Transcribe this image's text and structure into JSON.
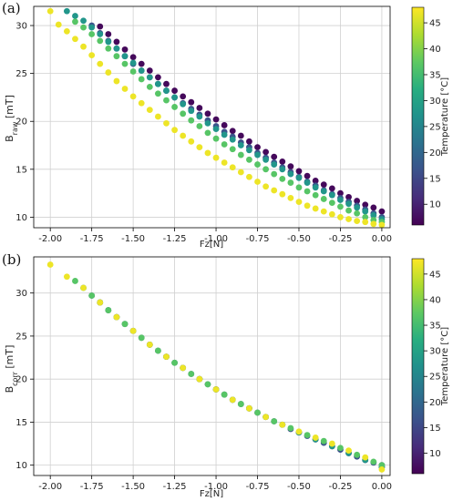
{
  "chart_data": [
    {
      "type": "scatter",
      "panel_label": "(a)",
      "xlabel": "Fz[N]",
      "ylabel_main": "B",
      "ylabel_sub": "raw",
      "ylabel_unit": " [mT]",
      "xlim": [
        -2.1,
        0.05
      ],
      "ylim": [
        8.9,
        32.0
      ],
      "xticks": [
        -2.0,
        -1.75,
        -1.5,
        -1.25,
        -1.0,
        -0.75,
        -0.5,
        -0.25,
        0.0
      ],
      "xtick_labels": [
        "-2.00",
        "-1.75",
        "-1.50",
        "-1.25",
        "-1.00",
        "-0.75",
        "-0.50",
        "-0.25",
        "0.00"
      ],
      "yticks": [
        10,
        15,
        20,
        25,
        30
      ],
      "ytick_labels": [
        "10",
        "15",
        "20",
        "25",
        "30"
      ],
      "grid": true,
      "colorbar": {
        "label": "Temperature [°C]",
        "range": [
          6,
          48
        ],
        "ticks": [
          10,
          15,
          20,
          25,
          30,
          35,
          40,
          45
        ],
        "tick_labels": [
          "10",
          "15",
          "20",
          "25",
          "30",
          "35",
          "40",
          "45"
        ],
        "colormap": "viridis"
      },
      "series": [
        {
          "temperature": 7,
          "x": [
            -1.7,
            -1.65,
            -1.6,
            -1.55,
            -1.5,
            -1.45,
            -1.4,
            -1.35,
            -1.3,
            -1.25,
            -1.2,
            -1.15,
            -1.1,
            -1.05,
            -1.0,
            -0.95,
            -0.9,
            -0.85,
            -0.8,
            -0.75,
            -0.7,
            -0.65,
            -0.6,
            -0.55,
            -0.5,
            -0.45,
            -0.4,
            -0.35,
            -0.3,
            -0.25,
            -0.2,
            -0.15,
            -0.1,
            -0.05,
            0.0
          ],
          "y": [
            29.9,
            29.1,
            28.3,
            27.5,
            26.7,
            26.0,
            25.3,
            24.6,
            23.9,
            23.2,
            22.6,
            22.0,
            21.4,
            20.8,
            20.2,
            19.6,
            19.0,
            18.5,
            17.9,
            17.3,
            16.8,
            16.3,
            15.8,
            15.3,
            14.8,
            14.3,
            13.8,
            13.4,
            13.0,
            12.5,
            12.1,
            11.7,
            11.3,
            11.0,
            10.6
          ]
        },
        {
          "temperature": 17,
          "x": [
            -1.75,
            -1.7,
            -1.65,
            -1.6,
            -1.55,
            -1.5,
            -1.45,
            -1.4,
            -1.35,
            -1.3,
            -1.25,
            -1.2,
            -1.15,
            -1.1,
            -1.05,
            -1.0,
            -0.95,
            -0.9,
            -0.85,
            -0.8,
            -0.75,
            -0.7,
            -0.65,
            -0.6,
            -0.55,
            -0.5,
            -0.45,
            -0.4,
            -0.35,
            -0.3,
            -0.25,
            -0.2,
            -0.15,
            -0.1,
            -0.05,
            0.0
          ],
          "y": [
            30.0,
            29.2,
            28.4,
            27.6,
            26.8,
            26.0,
            25.3,
            24.6,
            23.9,
            23.2,
            22.5,
            21.9,
            21.3,
            20.7,
            20.1,
            19.5,
            18.9,
            18.4,
            17.8,
            17.3,
            16.7,
            16.2,
            15.7,
            15.2,
            14.7,
            14.2,
            13.7,
            13.3,
            12.8,
            12.4,
            12.0,
            11.6,
            11.2,
            10.8,
            10.4,
            10.0
          ]
        },
        {
          "temperature": 28,
          "x": [
            -1.9,
            -1.85,
            -1.8,
            -1.75,
            -1.7,
            -1.65,
            -1.6,
            -1.55,
            -1.5,
            -1.45,
            -1.4,
            -1.35,
            -1.3,
            -1.25,
            -1.2,
            -1.15,
            -1.1,
            -1.05,
            -1.0,
            -0.95,
            -0.9,
            -0.85,
            -0.8,
            -0.75,
            -0.7,
            -0.65,
            -0.6,
            -0.55,
            -0.5,
            -0.45,
            -0.4,
            -0.35,
            -0.3,
            -0.25,
            -0.2,
            -0.15,
            -0.1,
            -0.05,
            0.0
          ],
          "y": [
            31.5,
            31.0,
            30.5,
            29.8,
            29.1,
            28.3,
            27.6,
            26.8,
            26.1,
            25.3,
            24.6,
            23.9,
            23.2,
            22.5,
            21.8,
            21.1,
            20.5,
            19.8,
            19.2,
            18.6,
            18.1,
            17.5,
            17.0,
            16.5,
            16.0,
            15.5,
            15.0,
            14.5,
            14.1,
            13.6,
            13.1,
            12.7,
            12.3,
            11.8,
            11.4,
            11.0,
            10.6,
            10.2,
            9.8
          ]
        },
        {
          "temperature": 37,
          "x": [
            -1.85,
            -1.8,
            -1.75,
            -1.7,
            -1.65,
            -1.6,
            -1.55,
            -1.5,
            -1.45,
            -1.4,
            -1.35,
            -1.3,
            -1.25,
            -1.2,
            -1.15,
            -1.1,
            -1.05,
            -1.0,
            -0.95,
            -0.9,
            -0.85,
            -0.8,
            -0.75,
            -0.7,
            -0.65,
            -0.6,
            -0.55,
            -0.5,
            -0.45,
            -0.4,
            -0.35,
            -0.3,
            -0.25,
            -0.2,
            -0.15,
            -0.1,
            -0.05,
            0.0
          ],
          "y": [
            30.4,
            29.8,
            29.1,
            28.4,
            27.6,
            26.8,
            26.0,
            25.2,
            24.4,
            23.6,
            22.9,
            22.2,
            21.5,
            20.8,
            20.1,
            19.5,
            18.8,
            18.2,
            17.6,
            17.1,
            16.5,
            16.0,
            15.5,
            15.0,
            14.5,
            14.0,
            13.6,
            13.1,
            12.7,
            12.3,
            11.9,
            11.5,
            11.1,
            10.7,
            10.4,
            10.0,
            9.7,
            9.5
          ]
        },
        {
          "temperature": 47,
          "x": [
            -2.0,
            -1.95,
            -1.9,
            -1.85,
            -1.8,
            -1.75,
            -1.7,
            -1.65,
            -1.6,
            -1.55,
            -1.5,
            -1.45,
            -1.4,
            -1.35,
            -1.3,
            -1.25,
            -1.2,
            -1.15,
            -1.1,
            -1.05,
            -1.0,
            -0.95,
            -0.9,
            -0.85,
            -0.8,
            -0.75,
            -0.7,
            -0.65,
            -0.6,
            -0.55,
            -0.5,
            -0.45,
            -0.4,
            -0.35,
            -0.3,
            -0.25,
            -0.2,
            -0.15,
            -0.1,
            -0.05,
            0.0
          ],
          "y": [
            31.5,
            30.1,
            29.4,
            28.6,
            27.8,
            26.9,
            26.0,
            25.1,
            24.2,
            23.4,
            22.6,
            21.9,
            21.2,
            20.5,
            19.8,
            19.1,
            18.5,
            17.9,
            17.3,
            16.7,
            16.2,
            15.7,
            15.2,
            14.7,
            14.2,
            13.7,
            13.2,
            12.8,
            12.4,
            12.0,
            11.6,
            11.2,
            10.9,
            10.6,
            10.3,
            10.0,
            9.8,
            9.6,
            9.5,
            9.3,
            9.2
          ]
        }
      ]
    },
    {
      "type": "scatter",
      "panel_label": "(b)",
      "xlabel": "Fz[N]",
      "ylabel_main": "B",
      "ylabel_sub": "corr",
      "ylabel_unit": " [mT]",
      "xlim": [
        -2.1,
        0.05
      ],
      "ylim": [
        8.8,
        34.2
      ],
      "xticks": [
        -2.0,
        -1.75,
        -1.5,
        -1.25,
        -1.0,
        -0.75,
        -0.5,
        -0.25,
        0.0
      ],
      "xtick_labels": [
        "-2.00",
        "-1.75",
        "-1.50",
        "-1.25",
        "-1.00",
        "-0.75",
        "-0.50",
        "-0.25",
        "0.00"
      ],
      "yticks": [
        10,
        15,
        20,
        25,
        30
      ],
      "ytick_labels": [
        "10",
        "15",
        "20",
        "25",
        "30"
      ],
      "grid": true,
      "colorbar": {
        "label": "Temperature [°C]",
        "range": [
          6,
          48
        ],
        "ticks": [
          10,
          15,
          20,
          25,
          30,
          35,
          40,
          45
        ],
        "tick_labels": [
          "10",
          "15",
          "20",
          "25",
          "30",
          "35",
          "40",
          "45"
        ],
        "colormap": "viridis"
      },
      "series": [
        {
          "temperature": 7,
          "x": [
            -1.7,
            -1.6,
            -1.5,
            -1.4,
            -1.3,
            -1.2,
            -1.1,
            -1.0,
            -0.9,
            -0.8,
            -0.7,
            -0.6,
            -0.5,
            -0.4,
            -0.3,
            -0.2,
            -0.1,
            0.0
          ],
          "y": [
            28.9,
            27.2,
            25.6,
            24.0,
            22.6,
            21.3,
            20.0,
            18.8,
            17.6,
            16.6,
            15.6,
            14.7,
            13.8,
            13.0,
            12.2,
            11.4,
            10.6,
            9.8
          ]
        },
        {
          "temperature": 17,
          "x": [
            -1.75,
            -1.65,
            -1.55,
            -1.45,
            -1.35,
            -1.25,
            -1.15,
            -1.05,
            -0.95,
            -0.85,
            -0.75,
            -0.65,
            -0.55,
            -0.45,
            -0.35,
            -0.25,
            -0.15,
            -0.05,
            0.0
          ],
          "y": [
            29.7,
            28.0,
            26.4,
            24.8,
            23.3,
            21.9,
            20.6,
            19.4,
            18.2,
            17.1,
            16.1,
            15.1,
            14.2,
            13.4,
            12.6,
            11.8,
            11.0,
            10.3,
            10.0
          ]
        },
        {
          "temperature": 28,
          "x": [
            -1.8,
            -1.7,
            -1.6,
            -1.5,
            -1.4,
            -1.3,
            -1.2,
            -1.1,
            -1.0,
            -0.9,
            -0.8,
            -0.7,
            -0.6,
            -0.5,
            -0.4,
            -0.3,
            -0.2,
            -0.1,
            0.0
          ],
          "y": [
            30.6,
            28.9,
            27.2,
            25.6,
            24.0,
            22.6,
            21.3,
            20.0,
            18.8,
            17.6,
            16.6,
            15.6,
            14.7,
            13.8,
            13.0,
            12.2,
            11.4,
            10.6,
            9.8
          ]
        },
        {
          "temperature": 37,
          "x": [
            -1.85,
            -1.75,
            -1.65,
            -1.55,
            -1.45,
            -1.35,
            -1.25,
            -1.15,
            -1.05,
            -0.95,
            -0.85,
            -0.75,
            -0.65,
            -0.55,
            -0.45,
            -0.35,
            -0.25,
            -0.15,
            -0.05,
            0.0
          ],
          "y": [
            31.4,
            29.7,
            28.0,
            26.4,
            24.8,
            23.3,
            21.9,
            20.6,
            19.4,
            18.2,
            17.1,
            16.1,
            15.1,
            14.3,
            13.5,
            12.8,
            12.0,
            11.2,
            10.4,
            10.0
          ]
        },
        {
          "temperature": 47,
          "x": [
            -2.0,
            -1.9,
            -1.8,
            -1.7,
            -1.6,
            -1.5,
            -1.4,
            -1.3,
            -1.2,
            -1.1,
            -1.0,
            -0.9,
            -0.8,
            -0.7,
            -0.6,
            -0.5,
            -0.4,
            -0.3,
            -0.2,
            -0.1,
            0.0
          ],
          "y": [
            33.3,
            31.9,
            30.6,
            28.9,
            27.2,
            25.6,
            24.0,
            22.6,
            21.3,
            20.0,
            18.8,
            17.6,
            16.6,
            15.6,
            14.7,
            13.9,
            13.2,
            12.5,
            11.7,
            10.9,
            9.5
          ]
        }
      ]
    }
  ]
}
